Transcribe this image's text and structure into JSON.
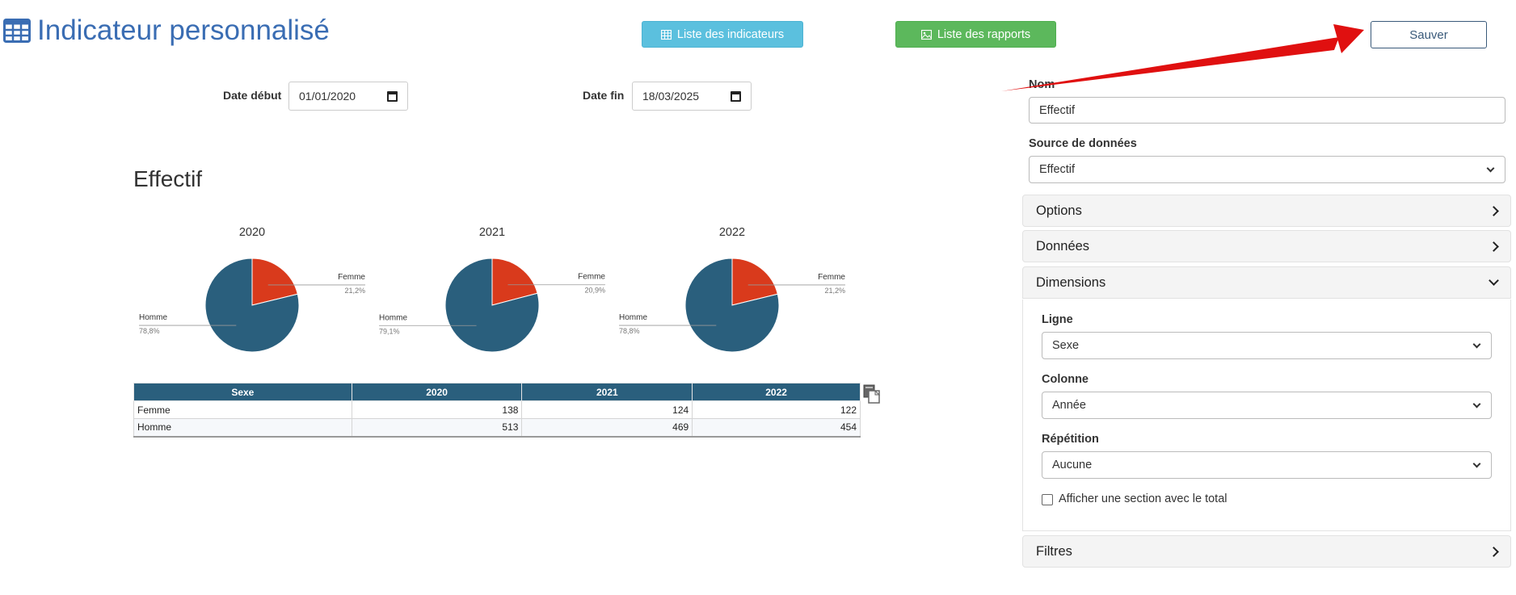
{
  "header": {
    "title": "Indicateur personnalisé",
    "btn_indicateurs": "Liste des indicateurs",
    "btn_rapports": "Liste des rapports",
    "btn_save": "Sauver"
  },
  "filters": {
    "date_debut_label": "Date début",
    "date_debut_value": "01/01/2020",
    "date_fin_label": "Date fin",
    "date_fin_value": "18/03/2025"
  },
  "section_title": "Effectif",
  "colors": {
    "femme": "#d93a1c",
    "homme": "#2a5f7d",
    "title_blue": "#3a6db3"
  },
  "chart_data": [
    {
      "type": "pie",
      "title": "2020",
      "labels": [
        "Femme",
        "Homme"
      ],
      "values": [
        21.2,
        78.8
      ],
      "value_labels": [
        "21,2%",
        "78,8%"
      ]
    },
    {
      "type": "pie",
      "title": "2021",
      "labels": [
        "Femme",
        "Homme"
      ],
      "values": [
        20.9,
        79.1
      ],
      "value_labels": [
        "20,9%",
        "79,1%"
      ]
    },
    {
      "type": "pie",
      "title": "2022",
      "labels": [
        "Femme",
        "Homme"
      ],
      "values": [
        21.2,
        78.8
      ],
      "value_labels": [
        "21,2%",
        "78,8%"
      ]
    }
  ],
  "table": {
    "headers": [
      "Sexe",
      "2020",
      "2021",
      "2022"
    ],
    "rows": [
      [
        "Femme",
        "138",
        "124",
        "122"
      ],
      [
        "Homme",
        "513",
        "469",
        "454"
      ]
    ]
  },
  "form": {
    "nom_label": "Nom",
    "nom_value": "Effectif",
    "source_label": "Source de données",
    "source_value": "Effectif",
    "accordion": {
      "options": "Options",
      "donnees": "Données",
      "dimensions": "Dimensions",
      "filtres": "Filtres"
    },
    "dimensions": {
      "ligne_label": "Ligne",
      "ligne_value": "Sexe",
      "colonne_label": "Colonne",
      "colonne_value": "Année",
      "repetition_label": "Répétition",
      "repetition_value": "Aucune",
      "total_checkbox_label": "Afficher une section avec le total",
      "total_checked": false
    }
  }
}
